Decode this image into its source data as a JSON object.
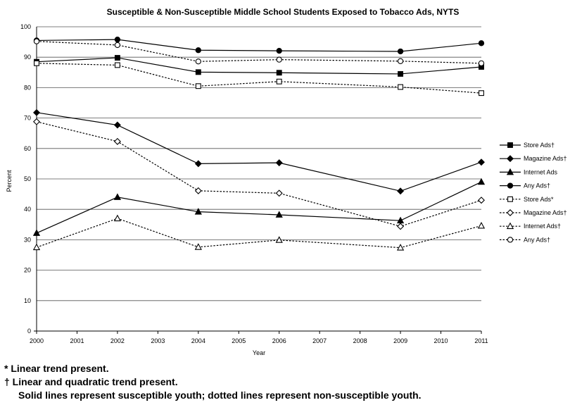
{
  "chart_data": {
    "type": "line",
    "title": "Susceptible & Non-Susceptible Middle School Students Exposed to Tobacco Ads, NYTS",
    "xlabel": "Year",
    "ylabel": "Percent",
    "ylim": [
      0,
      100
    ],
    "yticks": [
      0,
      10,
      20,
      30,
      40,
      50,
      60,
      70,
      80,
      90,
      100
    ],
    "xlim": [
      2000,
      2011
    ],
    "xticks": [
      2000,
      2001,
      2002,
      2003,
      2004,
      2005,
      2006,
      2007,
      2008,
      2009,
      2010,
      2011
    ],
    "grid": "horizontal",
    "legend_position": "right",
    "x": [
      2000,
      2002,
      2004,
      2006,
      2009,
      2011
    ],
    "series": [
      {
        "name": "Store Ads†",
        "style": "solid",
        "marker": "square-filled",
        "values": [
          88.5,
          89.8,
          85.1,
          84.9,
          84.5,
          86.8
        ]
      },
      {
        "name": "Magazine Ads†",
        "style": "solid",
        "marker": "diamond-filled",
        "values": [
          71.8,
          67.7,
          55.0,
          55.3,
          46.0,
          55.5
        ]
      },
      {
        "name": "Internet Ads",
        "style": "solid",
        "marker": "triangle-filled",
        "values": [
          32.2,
          44.0,
          39.2,
          38.2,
          36.3,
          49.0
        ]
      },
      {
        "name": "Any Ads†",
        "style": "solid",
        "marker": "circle-filled",
        "values": [
          95.5,
          95.8,
          92.3,
          92.1,
          91.9,
          94.6
        ]
      },
      {
        "name": "Store Ads*",
        "style": "dotted",
        "marker": "square-open",
        "values": [
          88.0,
          87.4,
          80.5,
          82.0,
          80.2,
          78.2
        ]
      },
      {
        "name": "Magazine Ads†",
        "style": "dotted",
        "marker": "diamond-open",
        "values": [
          68.8,
          62.3,
          46.1,
          45.3,
          34.4,
          43.0
        ]
      },
      {
        "name": "Internet Ads†",
        "style": "dotted",
        "marker": "triangle-open",
        "values": [
          27.5,
          37.0,
          27.6,
          29.9,
          27.4,
          34.6
        ]
      },
      {
        "name": "Any Ads†",
        "style": "dotted",
        "marker": "circle-open",
        "values": [
          95.2,
          94.0,
          88.6,
          89.2,
          88.7,
          88.0
        ]
      }
    ]
  },
  "notes": {
    "line1": "*  Linear trend present.",
    "line2": "† Linear and quadratic trend present.",
    "line3": "Solid lines represent susceptible youth; dotted lines represent non-susceptible youth."
  }
}
